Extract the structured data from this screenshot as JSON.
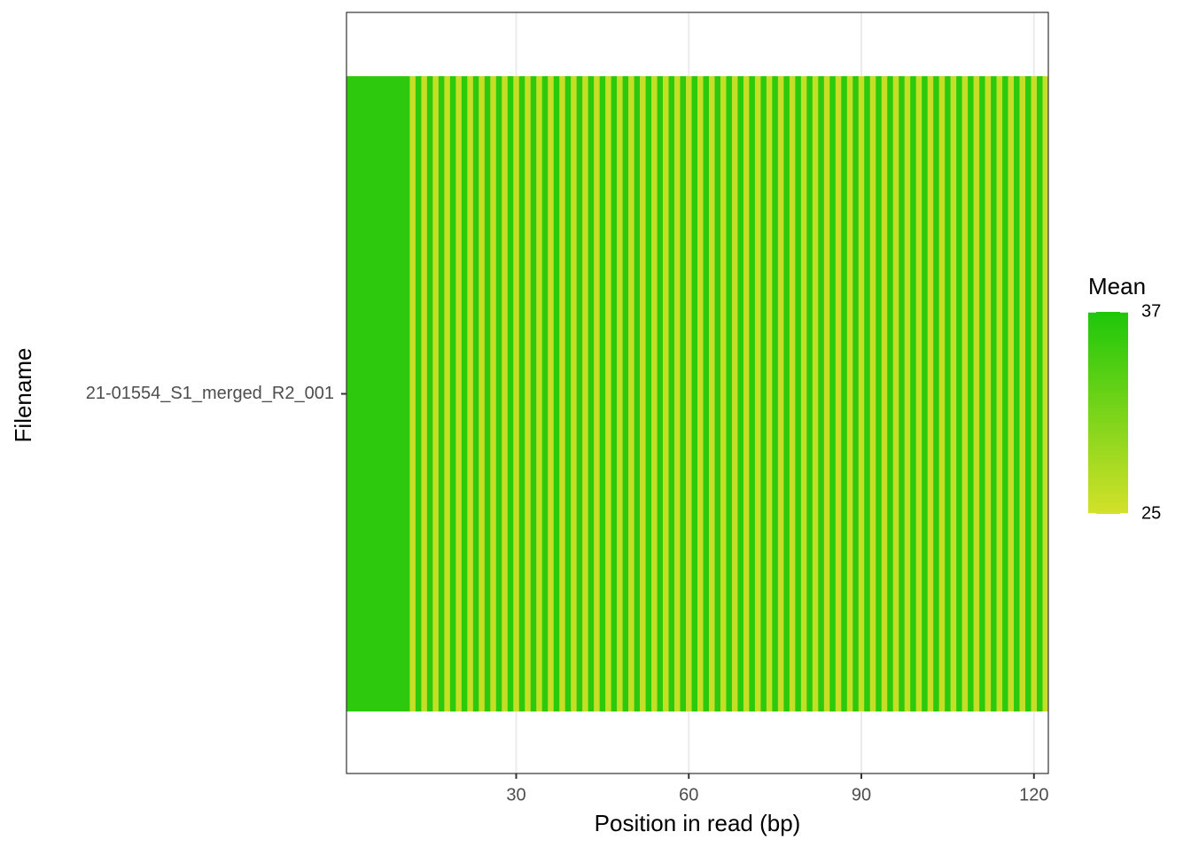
{
  "chart_data": {
    "type": "heatmap",
    "x_label": "Position in read (bp)",
    "y_label": "Filename",
    "categories": [
      "21-01554_S1_merged_R2_001"
    ],
    "x": [
      1,
      2,
      3,
      4,
      5,
      6,
      7,
      8,
      9,
      10,
      11,
      12,
      13,
      14,
      15,
      16,
      17,
      18,
      19,
      20,
      21,
      22,
      23,
      24,
      25,
      26,
      27,
      28,
      29,
      30,
      31,
      32,
      33,
      34,
      35,
      36,
      37,
      38,
      39,
      40,
      41,
      42,
      43,
      44,
      45,
      46,
      47,
      48,
      49,
      50,
      51,
      52,
      53,
      54,
      55,
      56,
      57,
      58,
      59,
      60,
      61,
      62,
      63,
      64,
      65,
      66,
      67,
      68,
      69,
      70,
      71,
      72,
      73,
      74,
      75,
      76,
      77,
      78,
      79,
      80,
      81,
      82,
      83,
      84,
      85,
      86,
      87,
      88,
      89,
      90,
      91,
      92,
      93,
      94,
      95,
      96,
      97,
      98,
      99,
      100,
      101,
      102,
      103,
      104,
      105,
      106,
      107,
      108,
      109,
      110,
      111,
      112,
      113,
      114,
      115,
      116,
      117,
      118,
      119,
      120,
      121,
      122
    ],
    "values": [
      36,
      36,
      36,
      36,
      36,
      36,
      36,
      36,
      36,
      36,
      36,
      26,
      36,
      26,
      36,
      26,
      36,
      26,
      36,
      26,
      36,
      26,
      36,
      26,
      36,
      26,
      36,
      26,
      36,
      26,
      36,
      26,
      36,
      26,
      36,
      26,
      36,
      26,
      36,
      26,
      36,
      26,
      36,
      26,
      36,
      26,
      36,
      26,
      36,
      26,
      36,
      26,
      36,
      26,
      36,
      26,
      36,
      26,
      36,
      26,
      36,
      26,
      36,
      26,
      36,
      26,
      36,
      26,
      36,
      26,
      36,
      26,
      36,
      26,
      36,
      26,
      36,
      26,
      36,
      26,
      36,
      26,
      36,
      26,
      36,
      26,
      36,
      26,
      36,
      26,
      36,
      26,
      36,
      26,
      36,
      26,
      36,
      26,
      36,
      26,
      36,
      26,
      36,
      26,
      36,
      26,
      36,
      26,
      36,
      26,
      36,
      26,
      36,
      26,
      36,
      26,
      36,
      26,
      36,
      26,
      36,
      26
    ],
    "xlim": [
      0.5,
      122.5
    ],
    "xticks": [
      30,
      60,
      90,
      120
    ],
    "grid": true,
    "legend_title": "Mean",
    "color_scale": {
      "low_color": "#d4e12a",
      "high_color": "#1ec70a",
      "limits": [
        25,
        37
      ],
      "ticks": [
        25,
        37
      ]
    }
  }
}
